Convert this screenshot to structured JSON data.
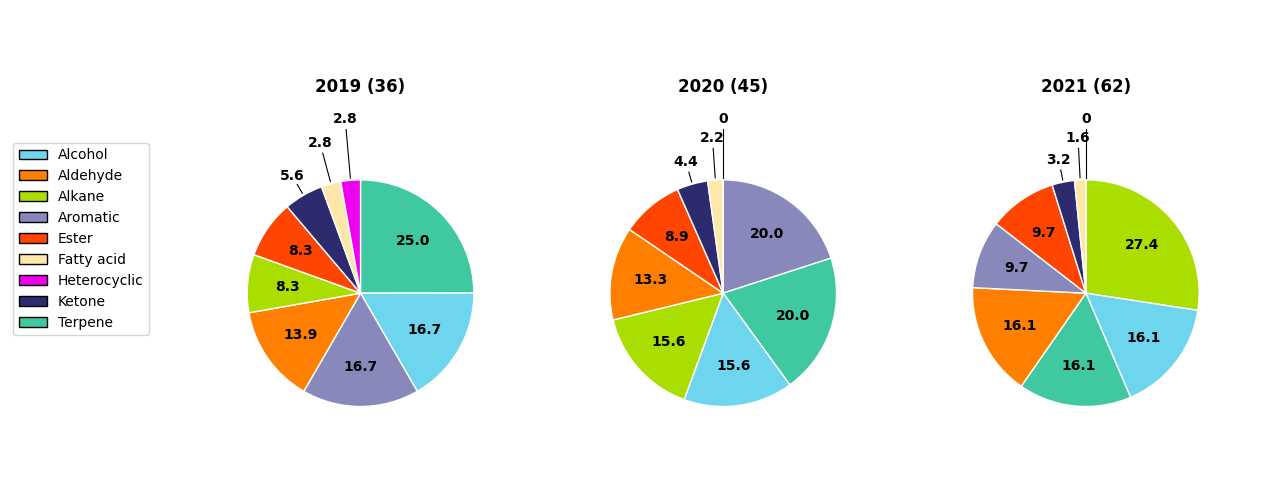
{
  "chart_data": [
    {
      "type": "pie",
      "title": "2019 (36)",
      "legend": "center left",
      "data_labels": true,
      "categories": [
        "Terpene",
        "Alcohol",
        "Aromatic",
        "Aldehyde",
        "Alkane",
        "Ester",
        "Ketone",
        "Fatty acid",
        "Heterocyclic"
      ],
      "values": [
        25.0,
        16.7,
        16.7,
        13.9,
        8.3,
        8.3,
        5.6,
        2.8,
        2.8
      ],
      "value_labels": [
        "25.0",
        "16.7",
        "16.7",
        "13.9",
        "8.3",
        "8.3",
        "5.6",
        "2.8",
        "2.8"
      ],
      "colors": [
        "#40c8a0",
        "#6dd5ed",
        "#8888bb",
        "#ff8000",
        "#aadd00",
        "#ff4500",
        "#2e2a6e",
        "#fde8aa",
        "#ee00ee"
      ]
    },
    {
      "type": "pie",
      "title": "2020 (45)",
      "data_labels": true,
      "categories": [
        "Aromatic",
        "Terpene",
        "Alcohol",
        "Alkane",
        "Aldehyde",
        "Ester",
        "Ketone",
        "Fatty acid",
        "Heterocyclic"
      ],
      "values": [
        20.0,
        20.0,
        15.6,
        15.6,
        13.3,
        8.9,
        4.4,
        2.2,
        0.0
      ],
      "value_labels": [
        "20.0",
        "20.0",
        "15.6",
        "15.6",
        "13.3",
        "8.9",
        "4.4",
        "2.2",
        "0"
      ],
      "colors": [
        "#8888bb",
        "#40c8a0",
        "#6dd5ed",
        "#aadd00",
        "#ff8000",
        "#ff4500",
        "#2e2a6e",
        "#fde8aa",
        "#ee00ee"
      ]
    },
    {
      "type": "pie",
      "title": "2021 (62)",
      "data_labels": true,
      "categories": [
        "Alkane",
        "Alcohol",
        "Terpene",
        "Aldehyde",
        "Aromatic",
        "Ester",
        "Ketone",
        "Fatty acid",
        "Heterocyclic"
      ],
      "values": [
        27.4,
        16.1,
        16.1,
        16.1,
        9.7,
        9.7,
        3.2,
        1.6,
        0.0
      ],
      "value_labels": [
        "27.4",
        "16.1",
        "16.1",
        "16.1",
        "9.7",
        "9.7",
        "3.2",
        "1.6",
        "0"
      ],
      "colors": [
        "#aadd00",
        "#6dd5ed",
        "#40c8a0",
        "#ff8000",
        "#8888bb",
        "#ff4500",
        "#2e2a6e",
        "#fde8aa",
        "#ee00ee"
      ]
    }
  ]
}
